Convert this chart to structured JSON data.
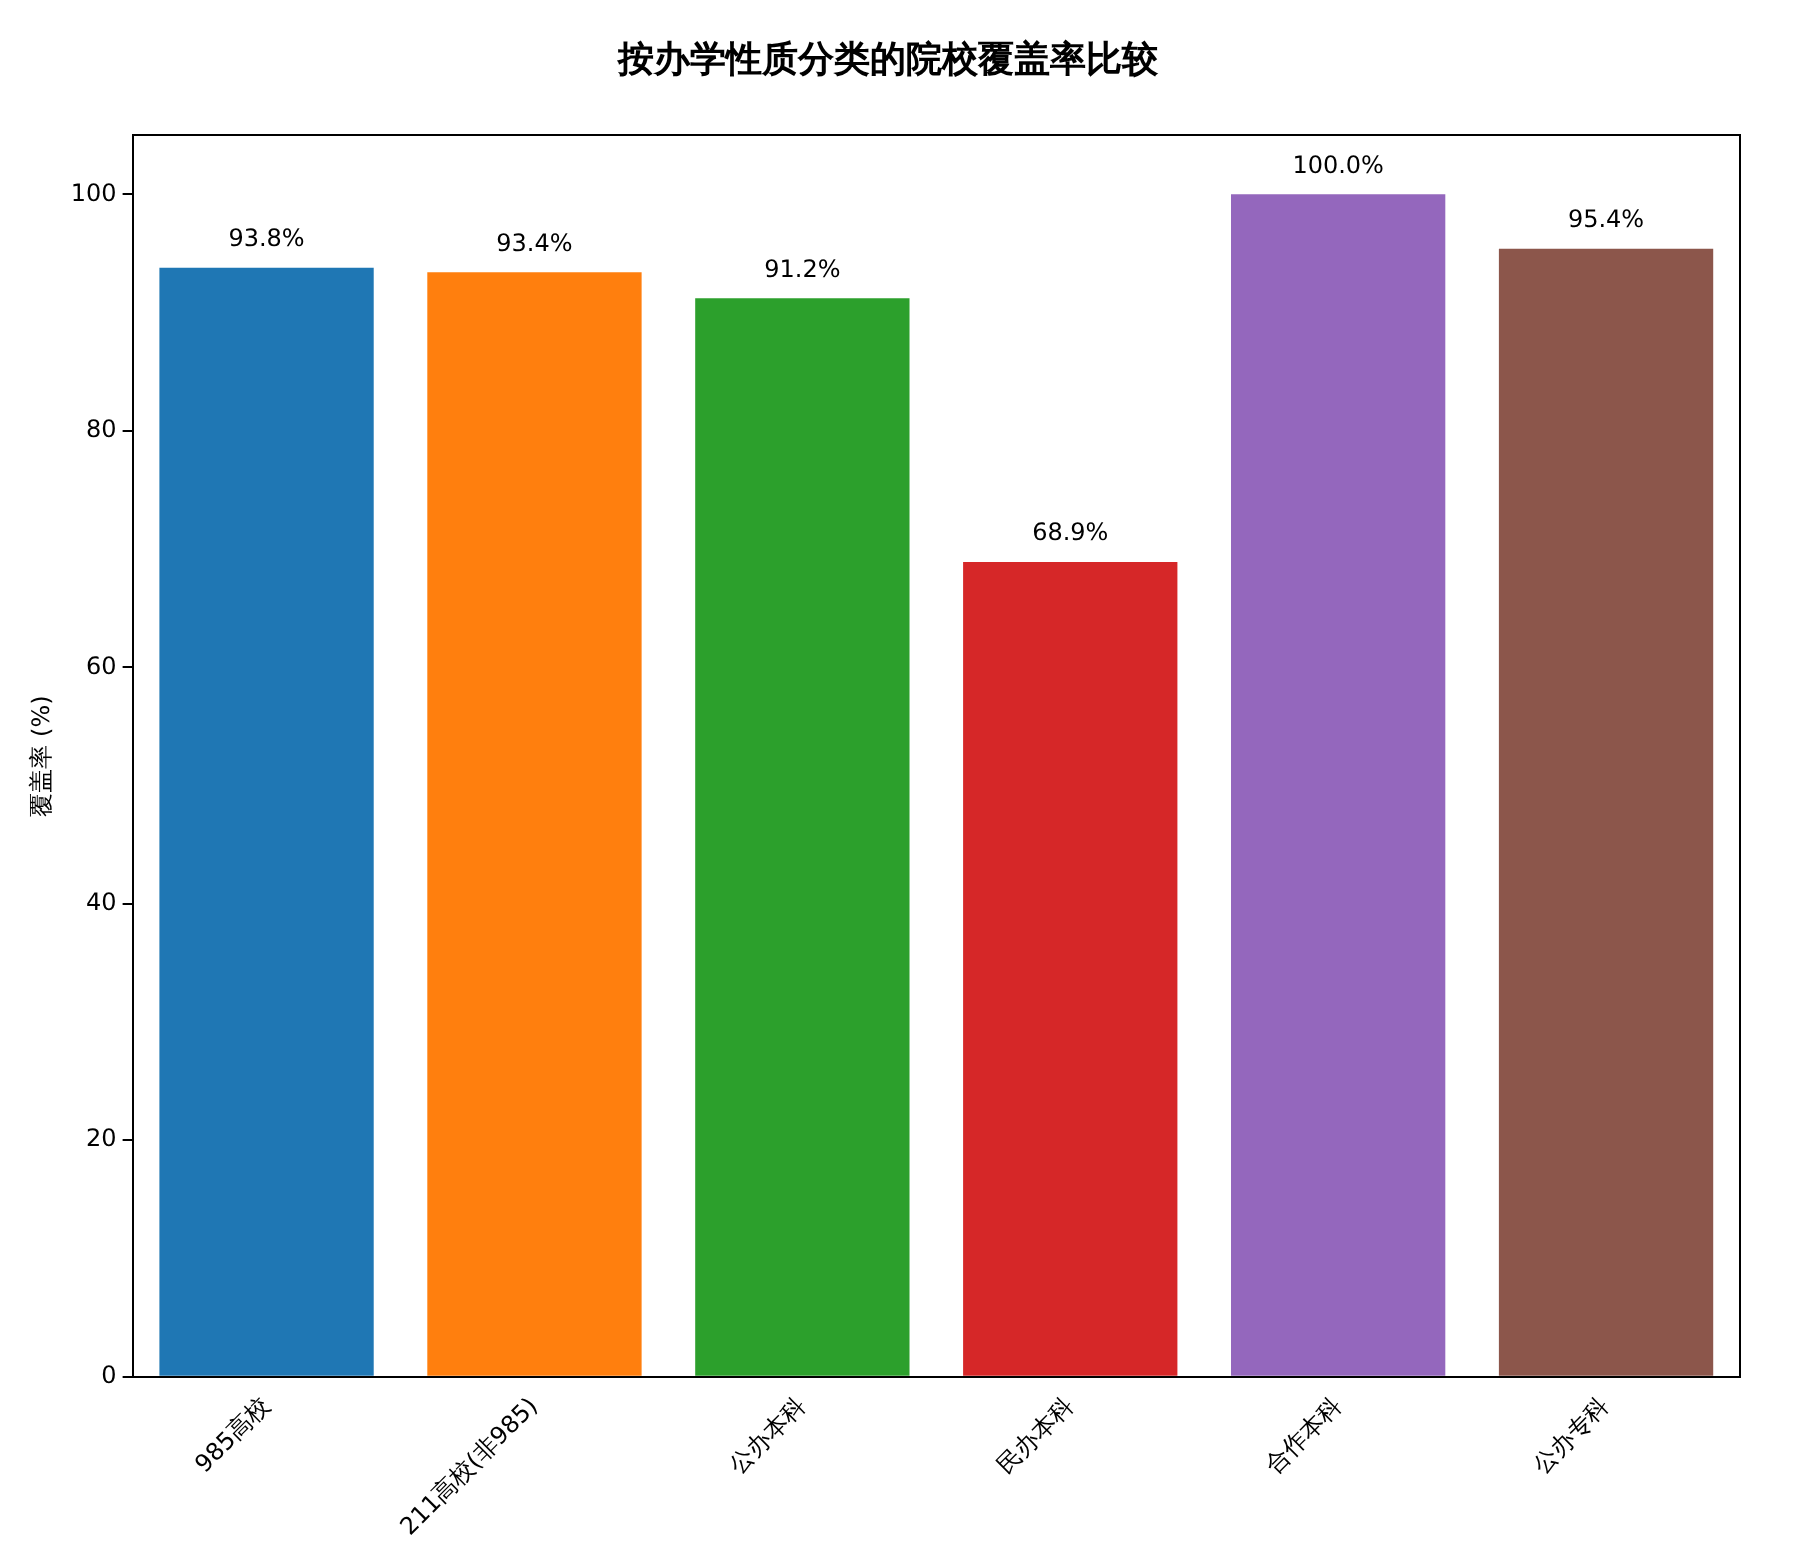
{
  "chart_data": {
    "type": "bar",
    "title": "按办学性质分类的院校覆盖率比较",
    "ylabel": "覆盖率 (%)",
    "categories": [
      "985高校",
      "211高校(非985)",
      "公办本科",
      "民办本科",
      "合作本科",
      "公办专科"
    ],
    "values": [
      93.8,
      93.4,
      91.2,
      68.9,
      100.0,
      95.4
    ],
    "colors": [
      "#1f77b4",
      "#ff7f0e",
      "#2ca02c",
      "#d62728",
      "#9467bd",
      "#8c564b"
    ],
    "value_labels": [
      "93.8%",
      "93.4%",
      "91.2%",
      "68.9%",
      "100.0%",
      "95.4%"
    ],
    "ylim": [
      0,
      105
    ],
    "yticks": [
      0,
      20,
      40,
      60,
      80,
      100
    ],
    "grid": false,
    "legend": false
  }
}
